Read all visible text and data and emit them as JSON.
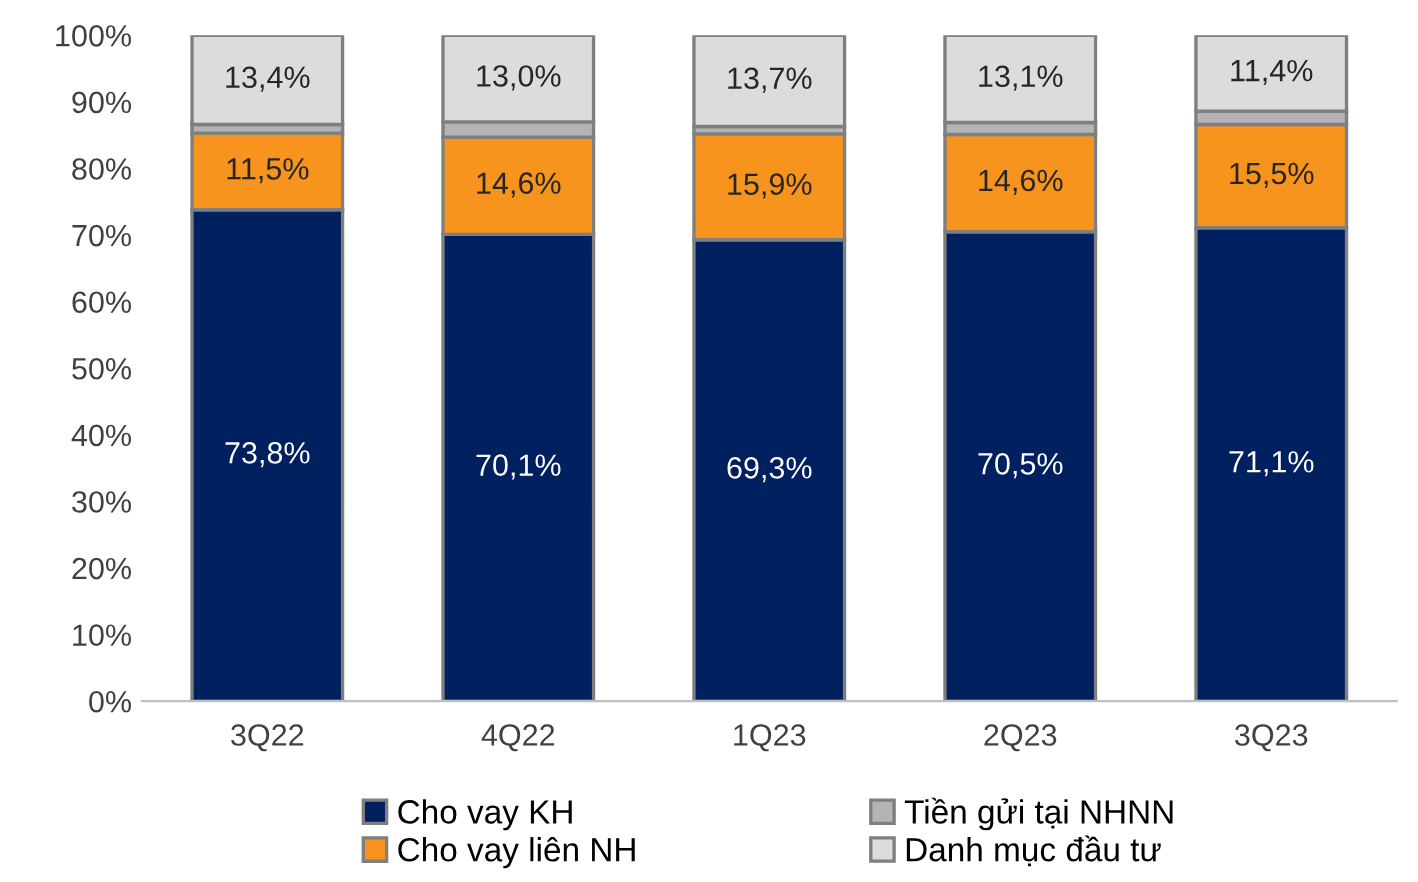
{
  "chart_data": {
    "type": "bar",
    "stacked": true,
    "categories": [
      "3Q22",
      "4Q22",
      "1Q23",
      "2Q23",
      "3Q23"
    ],
    "series": [
      {
        "name": "Cho vay KH",
        "color": "#002060",
        "values": [
          73.8,
          70.1,
          69.3,
          70.5,
          71.1
        ],
        "value_labels": [
          "73,8%",
          "70,1%",
          "69,3%",
          "70,5%",
          "71,1%"
        ]
      },
      {
        "name": "Cho vay liên NH",
        "color": "#f7941d",
        "values": [
          11.5,
          14.6,
          15.9,
          14.6,
          15.5
        ],
        "value_labels": [
          "11,5%",
          "14,6%",
          "15,9%",
          "14,6%",
          "15,5%"
        ]
      },
      {
        "name": "Tiền gửi tại NHNN",
        "color": "#b4b4b4",
        "values": [
          1.3,
          2.3,
          1.1,
          1.8,
          2.0
        ]
      },
      {
        "name": "Danh mục đầu tư",
        "color": "#dcdcdc",
        "values": [
          13.4,
          13.0,
          13.7,
          13.1,
          11.4
        ],
        "value_labels": [
          "13,4%",
          "13,0%",
          "13,7%",
          "13,1%",
          "11,4%"
        ]
      }
    ],
    "ylim": [
      0,
      100
    ],
    "yticks": [
      {
        "value": 0,
        "label": "0%"
      },
      {
        "value": 10,
        "label": "10%"
      },
      {
        "value": 20,
        "label": "20%"
      },
      {
        "value": 30,
        "label": "30%"
      },
      {
        "value": 40,
        "label": "40%"
      },
      {
        "value": 50,
        "label": "50%"
      },
      {
        "value": 60,
        "label": "60%"
      },
      {
        "value": 70,
        "label": "70%"
      },
      {
        "value": 80,
        "label": "80%"
      },
      {
        "value": 90,
        "label": "90%"
      },
      {
        "value": 100,
        "label": "100%"
      }
    ],
    "grid": false,
    "legend": "bottom"
  }
}
